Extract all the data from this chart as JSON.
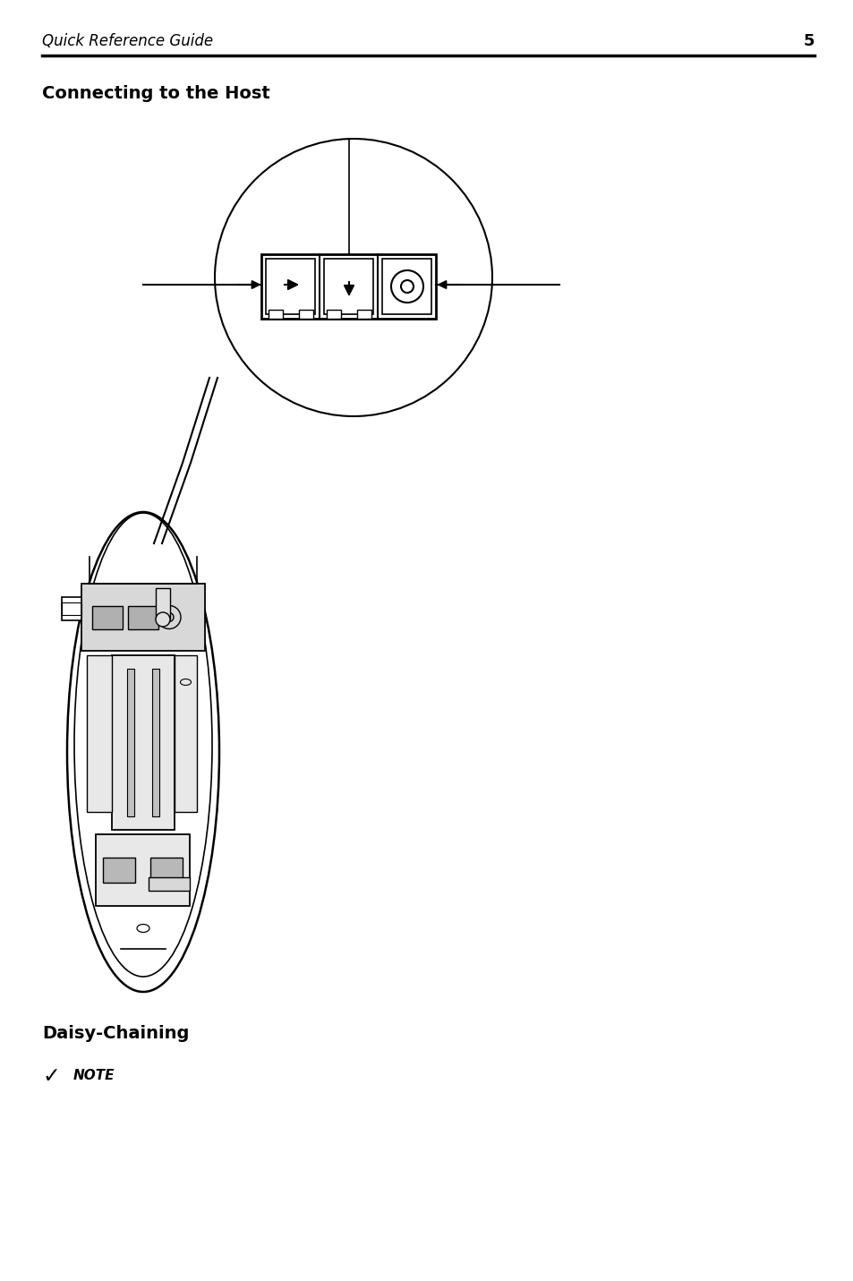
{
  "page_title": "Quick Reference Guide",
  "page_number": "5",
  "section1_title": "Connecting to the Host",
  "section2_title": "Daisy-Chaining",
  "note_label": "NOTE",
  "bg_color": "#ffffff",
  "line_color": "#000000"
}
